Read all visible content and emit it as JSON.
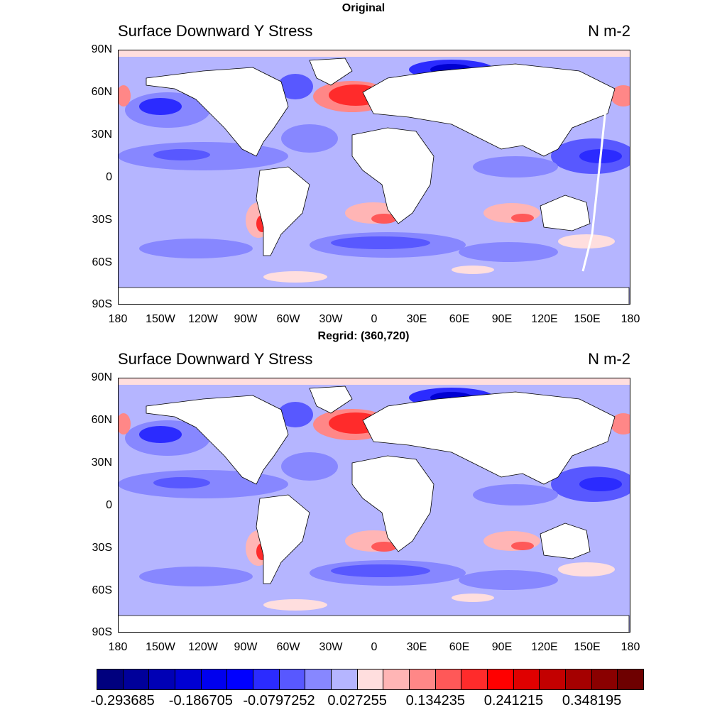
{
  "figure": {
    "panels": [
      {
        "header": "Original",
        "left_title": "Surface Downward Y Stress",
        "right_title": "N m-2"
      },
      {
        "header": "Regrid: (360,720)",
        "left_title": "Surface Downward Y Stress",
        "right_title": "N m-2"
      }
    ]
  },
  "axes": {
    "lat_labels": [
      "90N",
      "60N",
      "30N",
      "0",
      "30S",
      "60S",
      "90S"
    ],
    "lon_labels": [
      "180",
      "150W",
      "120W",
      "90W",
      "60W",
      "30W",
      "0",
      "30E",
      "60E",
      "90E",
      "120E",
      "150E",
      "180"
    ]
  },
  "colorbar": {
    "colors": [
      "#00007e",
      "#00009a",
      "#0000b5",
      "#0000d2",
      "#0000ee",
      "#0000ff",
      "#2b2bff",
      "#5858ff",
      "#8787ff",
      "#b5b5ff",
      "#ffdede",
      "#ffb5b5",
      "#ff8787",
      "#ff5858",
      "#ff2b2b",
      "#ff0000",
      "#e00000",
      "#c30000",
      "#a50000",
      "#8a0000",
      "#6e0000"
    ],
    "labels": [
      "-0.293685",
      "-0.186705",
      "-0.0797252",
      "0.027255",
      "0.134235",
      "0.241215",
      "0.348195"
    ]
  }
}
